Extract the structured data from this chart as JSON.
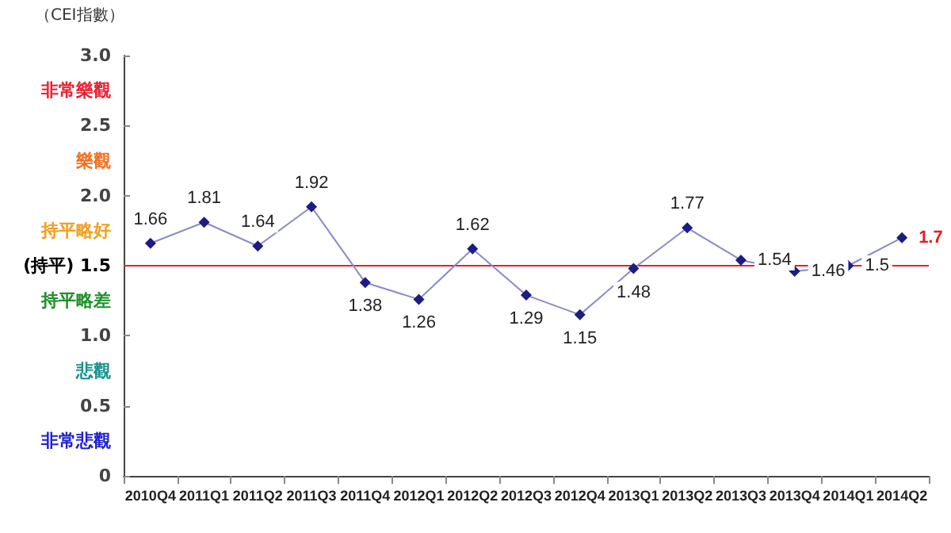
{
  "chart_data": {
    "type": "line",
    "ylabel": "（CEI指數）",
    "categories": [
      "2010Q4",
      "2011Q1",
      "2011Q2",
      "2011Q3",
      "2011Q4",
      "2012Q1",
      "2012Q2",
      "2012Q3",
      "2012Q4",
      "2013Q1",
      "2013Q2",
      "2013Q3",
      "2013Q4",
      "2014Q1",
      "2014Q2"
    ],
    "series": [
      {
        "color": "#1c1c84",
        "values": [
          1.66,
          1.81,
          1.64,
          1.92,
          1.38,
          1.26,
          1.62,
          1.29,
          1.15,
          1.48,
          1.77,
          1.54,
          1.46,
          1.5,
          1.7
        ]
      }
    ],
    "data_labels": true,
    "marker": "diamond",
    "line_style": "solid",
    "grid": false,
    "ylim": [
      0,
      3
    ],
    "yticks": [
      0,
      {
        "value": 0.25,
        "label": "非常悲觀"
      },
      0.5,
      {
        "value": 0.75,
        "label": "悲觀"
      },
      {
        "value": 1,
        "label": "1.0"
      },
      {
        "value": 1.25,
        "label": "持平略差"
      },
      {
        "value": 1.5,
        "label": "(持平) 1.5"
      },
      {
        "value": 1.75,
        "label": "持平略好"
      },
      {
        "value": 2,
        "label": "2.0"
      },
      {
        "value": 2.25,
        "label": "樂觀"
      },
      2.5,
      {
        "value": 2.75,
        "label": "非常樂觀"
      },
      {
        "value": 3,
        "label": "3.0"
      }
    ],
    "ref_lines": [
      {
        "axis": "y",
        "value": 1.5,
        "color": "#e8202a"
      }
    ]
  }
}
